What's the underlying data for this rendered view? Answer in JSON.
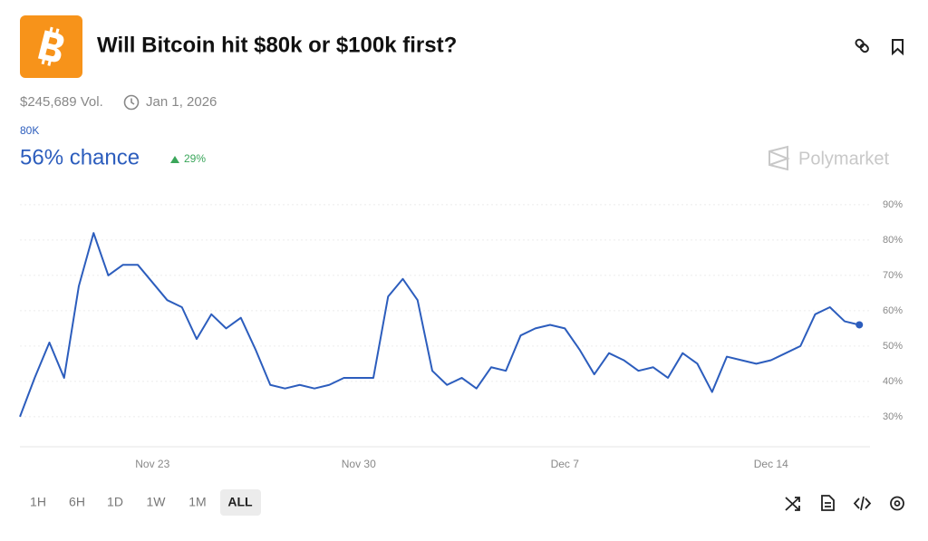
{
  "header": {
    "title": "Will Bitcoin hit $80k or $100k first?",
    "volume": "$245,689 Vol.",
    "end_date": "Jan 1, 2026"
  },
  "outcome": {
    "name": "80K",
    "chance": "56% chance",
    "change": "29%"
  },
  "brand": "Polymarket",
  "ranges": [
    "1H",
    "6H",
    "1D",
    "1W",
    "1M",
    "ALL"
  ],
  "chart_data": {
    "type": "line",
    "categories": [
      null,
      null,
      null,
      null,
      null,
      null,
      null,
      null,
      null,
      "Nov 23",
      null,
      null,
      null,
      null,
      null,
      null,
      null,
      null,
      null,
      null,
      null,
      null,
      null,
      "Nov 30",
      null,
      null,
      null,
      null,
      null,
      null,
      null,
      null,
      null,
      null,
      null,
      null,
      null,
      "Dec 7",
      null,
      null,
      null,
      null,
      null,
      null,
      null,
      null,
      null,
      null,
      null,
      null,
      null,
      "Dec 14",
      null,
      null,
      null,
      null,
      null,
      null
    ],
    "values": [
      30,
      41,
      51,
      41,
      67,
      82,
      70,
      73,
      73,
      68,
      63,
      61,
      52,
      59,
      55,
      58,
      49,
      39,
      38,
      39,
      38,
      39,
      41,
      41,
      41,
      64,
      69,
      63,
      43,
      39,
      41,
      38,
      44,
      43,
      53,
      55,
      56,
      55,
      49,
      42,
      48,
      46,
      43,
      44,
      41,
      48,
      45,
      37,
      47,
      46,
      45,
      46,
      48,
      50,
      59,
      61,
      57,
      56
    ],
    "color": "#2c5dbd",
    "ylim": [
      21.5,
      92.8
    ],
    "yticks": [
      {
        "value": 30,
        "label": "30%"
      },
      {
        "value": 40,
        "label": "40%"
      },
      {
        "value": 50,
        "label": "50%"
      },
      {
        "value": 60,
        "label": "60%"
      },
      {
        "value": 70,
        "label": "70%"
      },
      {
        "value": 80,
        "label": "80%"
      },
      {
        "value": 90,
        "label": "90%"
      }
    ],
    "grid": true
  }
}
